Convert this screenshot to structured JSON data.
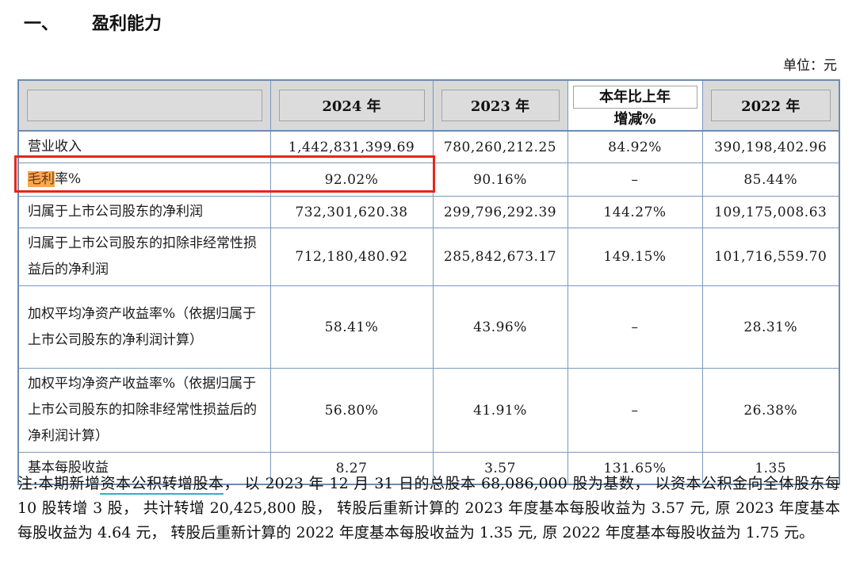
{
  "page": {
    "title_number": "一、",
    "title": "盈利能力",
    "unit_label": "单位：元"
  },
  "table": {
    "headers": {
      "col_label": "",
      "col_2024": "2024 年",
      "col_2023": "2023 年",
      "col_change_line1": "本年比上年",
      "col_change_line2": "增减%",
      "col_2022": "2022 年"
    },
    "rows": [
      {
        "label_parts": [
          {
            "text": "营业收入"
          }
        ],
        "values": [
          "1,442,831,399.69",
          "780,260,212.25",
          "84.92%",
          "390,198,402.96"
        ]
      },
      {
        "label_parts": [
          {
            "text": "毛利",
            "highlight": true
          },
          {
            "text": "率%"
          }
        ],
        "values": [
          "92.02%",
          "90.16%",
          "–",
          "85.44%"
        ],
        "annotated": true
      },
      {
        "label_parts": [
          {
            "text": "归属于上市公司股东的净利润"
          }
        ],
        "values": [
          "732,301,620.38",
          "299,796,292.39",
          "144.27%",
          "109,175,008.63"
        ]
      },
      {
        "label_parts": [
          {
            "text": "归属于上市公司股东的扣除非经常性损益后的净利润"
          }
        ],
        "values": [
          "712,180,480.92",
          "285,842,673.17",
          "149.15%",
          "101,716,559.70"
        ]
      },
      {
        "label_parts": [
          {
            "text": "加权平均净资产收益率%（依据归属于上市公司股东的净利润计算）"
          }
        ],
        "values": [
          "58.41%",
          "43.96%",
          "–",
          "28.31%"
        ]
      },
      {
        "label_parts": [
          {
            "text": "加权平均净资产收益率%（依据归属于上市公司股东的扣除非经常性损益后的净利润计算）"
          }
        ],
        "values": [
          "56.80%",
          "41.91%",
          "–",
          "26.38%"
        ]
      },
      {
        "label_parts": [
          {
            "text": "基本每股收益"
          }
        ],
        "values": [
          "8.27",
          "3.57",
          "131.65%",
          "1.35"
        ]
      }
    ]
  },
  "note": {
    "prefix": "注:本期新增",
    "highlighted_link": "资本公积转增股本",
    "rest": "， 以 2023 年 12 月 31 日的总股本 68,086,000 股为基数， 以资本公积金向全体股东每 10 股转增 3 股， 共计转增 20,425,800 股， 转股后重新计算的 2023 年度基本每股收益为 3.57 元, 原 2023 年度基本每股收益为 4.64 元， 转股后重新计算的 2022 年度基本每股收益为 1.35 元, 原 2022 年度基本每股收益为 1.75 元。"
  },
  "colors": {
    "table_border": "#7a99bd",
    "table_outer_border": "#6d8cb0",
    "header_bg": "#d9d9d9",
    "annotation_red": "#e8251a",
    "highlight_orange": "#f7a750",
    "link_underline_teal": "#27b5c4"
  }
}
